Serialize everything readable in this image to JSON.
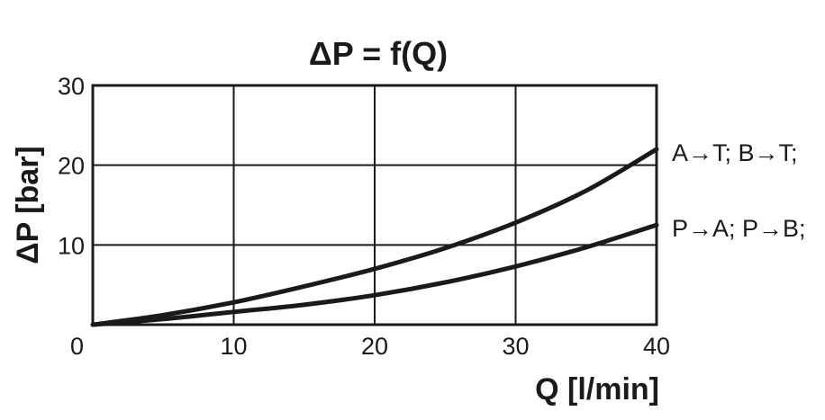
{
  "chart_data": {
    "type": "line",
    "title": "ΔP = f(Q)",
    "xlabel": "Q [l/min]",
    "ylabel": "ΔP [bar]",
    "xlim": [
      0,
      40
    ],
    "ylim": [
      0,
      30
    ],
    "x_ticks": [
      "0",
      "10",
      "20",
      "30",
      "40"
    ],
    "y_ticks": [
      "10",
      "20",
      "30"
    ],
    "grid": true,
    "series": [
      {
        "name": "A→T; B→T;",
        "x": [
          0,
          5,
          10,
          15,
          20,
          25,
          30,
          35,
          40
        ],
        "y": [
          0,
          1.2,
          2.8,
          4.8,
          7.0,
          9.6,
          12.8,
          16.8,
          22.0
        ]
      },
      {
        "name": "P→A; P→B;",
        "x": [
          0,
          5,
          10,
          15,
          20,
          25,
          30,
          35,
          40
        ],
        "y": [
          0,
          0.7,
          1.6,
          2.5,
          3.7,
          5.3,
          7.3,
          9.7,
          12.5
        ]
      }
    ]
  }
}
